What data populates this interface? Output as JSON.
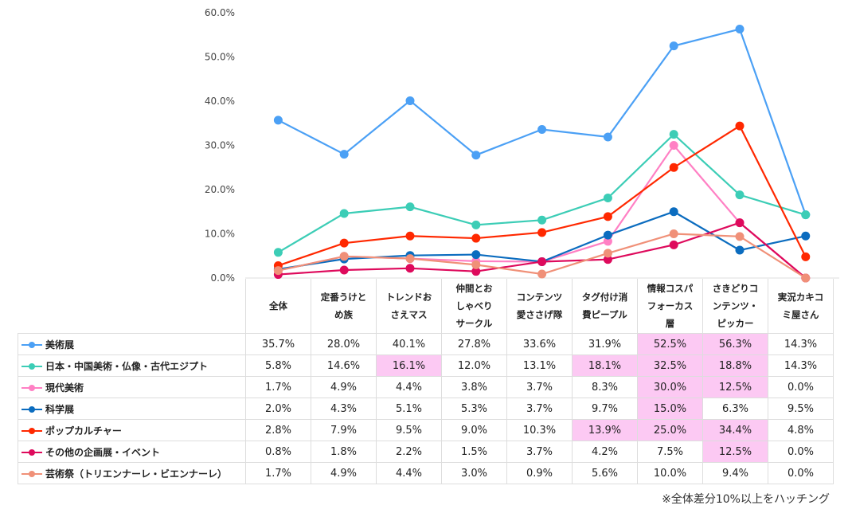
{
  "chart_data": {
    "type": "line",
    "categories": [
      "全体",
      "定番うけとめ族",
      "トレンドおさえマス",
      "仲間とおしゃべりサークル",
      "コンテンツ愛ささげ隊",
      "タグ付け消費ピープル",
      "情報コスパフォーカス層",
      "さきどりコンテンツ・ピッカー",
      "実況カキコミ屋さん"
    ],
    "category_labels": [
      [
        "全体"
      ],
      [
        "定番うけと",
        "め族"
      ],
      [
        "トレンドお",
        "さえマス"
      ],
      [
        "仲間とお",
        "しゃべり",
        "サークル"
      ],
      [
        "コンテンツ",
        "愛ささげ隊"
      ],
      [
        "タグ付け消",
        "費ピープル"
      ],
      [
        "情報コスパ",
        "フォーカス",
        "層"
      ],
      [
        "さきどりコ",
        "ンテンツ・",
        "ピッカー"
      ],
      [
        "実況カキコ",
        "ミ屋さん"
      ]
    ],
    "yticks": [
      "0.0%",
      "10.0%",
      "20.0%",
      "30.0%",
      "40.0%",
      "50.0%",
      "60.0%"
    ],
    "ylim": [
      0,
      60
    ],
    "series": [
      {
        "name": "美術展",
        "color": "#4ba0f5",
        "values": [
          35.7,
          28.0,
          40.1,
          27.8,
          33.6,
          31.9,
          52.5,
          56.3,
          14.3
        ],
        "labels": [
          "35.7%",
          "28.0%",
          "40.1%",
          "27.8%",
          "33.6%",
          "31.9%",
          "52.5%",
          "56.3%",
          "14.3%"
        ],
        "highlight": [
          false,
          false,
          false,
          false,
          false,
          false,
          true,
          true,
          false
        ]
      },
      {
        "name": "日本・中国美術・仏像・古代エジプト",
        "color": "#3ccdb6",
        "values": [
          5.8,
          14.6,
          16.1,
          12.0,
          13.1,
          18.1,
          32.5,
          18.8,
          14.3
        ],
        "labels": [
          "5.8%",
          "14.6%",
          "16.1%",
          "12.0%",
          "13.1%",
          "18.1%",
          "32.5%",
          "18.8%",
          "14.3%"
        ],
        "highlight": [
          false,
          false,
          true,
          false,
          false,
          true,
          true,
          true,
          false
        ]
      },
      {
        "name": "現代美術",
        "color": "#ff80c4",
        "values": [
          1.7,
          4.9,
          4.4,
          3.8,
          3.7,
          8.3,
          30.0,
          12.5,
          0.0
        ],
        "labels": [
          "1.7%",
          "4.9%",
          "4.4%",
          "3.8%",
          "3.7%",
          "8.3%",
          "30.0%",
          "12.5%",
          "0.0%"
        ],
        "highlight": [
          false,
          false,
          false,
          false,
          false,
          false,
          true,
          true,
          false
        ]
      },
      {
        "name": "科学展",
        "color": "#0b6cbf",
        "values": [
          2.0,
          4.3,
          5.1,
          5.3,
          3.7,
          9.7,
          15.0,
          6.3,
          9.5
        ],
        "labels": [
          "2.0%",
          "4.3%",
          "5.1%",
          "5.3%",
          "3.7%",
          "9.7%",
          "15.0%",
          "6.3%",
          "9.5%"
        ],
        "highlight": [
          false,
          false,
          false,
          false,
          false,
          false,
          true,
          false,
          false
        ]
      },
      {
        "name": "ポップカルチャー",
        "color": "#ff2800",
        "values": [
          2.8,
          7.9,
          9.5,
          9.0,
          10.3,
          13.9,
          25.0,
          34.4,
          4.8
        ],
        "labels": [
          "2.8%",
          "7.9%",
          "9.5%",
          "9.0%",
          "10.3%",
          "13.9%",
          "25.0%",
          "34.4%",
          "4.8%"
        ],
        "highlight": [
          false,
          false,
          false,
          false,
          false,
          true,
          true,
          true,
          false
        ]
      },
      {
        "name": "その他の企画展・イベント",
        "color": "#de0a5c",
        "values": [
          0.8,
          1.8,
          2.2,
          1.5,
          3.7,
          4.2,
          7.5,
          12.5,
          0.0
        ],
        "labels": [
          "0.8%",
          "1.8%",
          "2.2%",
          "1.5%",
          "3.7%",
          "4.2%",
          "7.5%",
          "12.5%",
          "0.0%"
        ],
        "highlight": [
          false,
          false,
          false,
          false,
          false,
          false,
          false,
          true,
          false
        ]
      },
      {
        "name": "芸術祭（トリエンナーレ・ビエンナーレ）",
        "color": "#f09078",
        "values": [
          1.7,
          4.9,
          4.4,
          3.0,
          0.9,
          5.6,
          10.0,
          9.4,
          0.0
        ],
        "labels": [
          "1.7%",
          "4.9%",
          "4.4%",
          "3.0%",
          "0.9%",
          "5.6%",
          "10.0%",
          "9.4%",
          "0.0%"
        ],
        "highlight": [
          false,
          false,
          false,
          false,
          false,
          false,
          false,
          false,
          false
        ]
      }
    ],
    "highlight_color": "#fcc9f3",
    "grid": false,
    "legend": "table-left"
  },
  "note": "※全体差分10%以上をハッチング"
}
